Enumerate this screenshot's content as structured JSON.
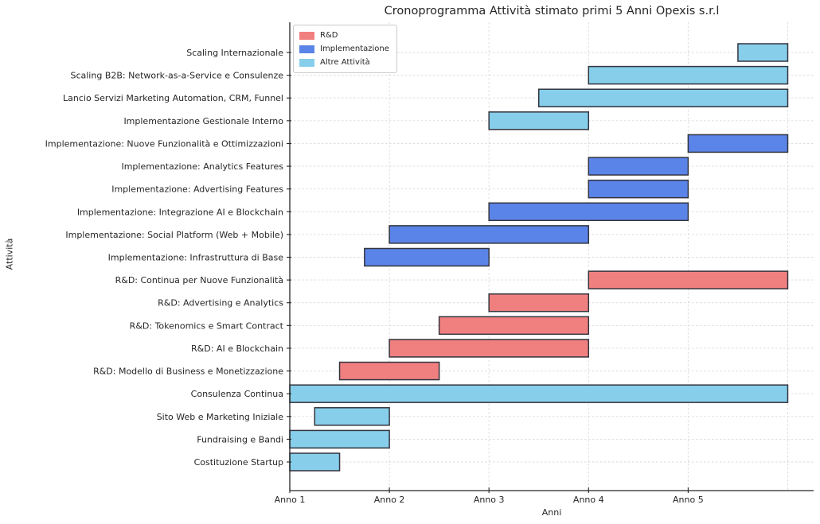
{
  "chart_data": {
    "type": "bar",
    "variant": "gantt-horizontal",
    "title": "Cronoprogramma Attività stimato primi 5 Anni Opexis s.r.l",
    "xlabel": "Anni",
    "ylabel": "Attività",
    "x_tick_labels": [
      "Anno 1",
      "Anno 2",
      "Anno 3",
      "Anno 4",
      "Anno 5"
    ],
    "x_tick_positions": [
      0,
      1,
      2,
      3,
      4
    ],
    "xlim": [
      0,
      5.26
    ],
    "grid": true,
    "grid_style": "dashed",
    "legend": {
      "position": "upper-left",
      "entries": [
        {
          "label": "R&D",
          "color": "#F08080"
        },
        {
          "label": "Implementazione",
          "color": "#5B84E8"
        },
        {
          "label": "Altre Attività",
          "color": "#87CEEB"
        }
      ]
    },
    "bar_edge_color": "#33343E",
    "grid_color": "#D9D9D9",
    "axis_color": "#262626",
    "tasks": [
      {
        "label": "Scaling Internazionale",
        "start": 4.5,
        "end": 5.0,
        "category": "Altre Attività"
      },
      {
        "label": "Scaling B2B: Network-as-a-Service e Consulenze",
        "start": 3.0,
        "end": 5.0,
        "category": "Altre Attività"
      },
      {
        "label": "Lancio Servizi Marketing Automation, CRM, Funnel",
        "start": 2.5,
        "end": 5.0,
        "category": "Altre Attività"
      },
      {
        "label": "Implementazione Gestionale Interno",
        "start": 2.0,
        "end": 3.0,
        "category": "Altre Attività"
      },
      {
        "label": "Implementazione: Nuove Funzionalità e Ottimizzazioni",
        "start": 4.0,
        "end": 5.0,
        "category": "Implementazione"
      },
      {
        "label": "Implementazione: Analytics Features",
        "start": 3.0,
        "end": 4.0,
        "category": "Implementazione"
      },
      {
        "label": "Implementazione: Advertising Features",
        "start": 3.0,
        "end": 4.0,
        "category": "Implementazione"
      },
      {
        "label": "Implementazione: Integrazione AI e Blockchain",
        "start": 2.0,
        "end": 4.0,
        "category": "Implementazione"
      },
      {
        "label": "Implementazione: Social Platform (Web + Mobile)",
        "start": 1.0,
        "end": 3.0,
        "category": "Implementazione"
      },
      {
        "label": "Implementazione: Infrastruttura di Base",
        "start": 0.75,
        "end": 2.0,
        "category": "Implementazione"
      },
      {
        "label": "R&D: Continua per Nuove Funzionalità",
        "start": 3.0,
        "end": 5.0,
        "category": "R&D"
      },
      {
        "label": "R&D: Advertising e Analytics",
        "start": 2.0,
        "end": 3.0,
        "category": "R&D"
      },
      {
        "label": "R&D: Tokenomics e Smart Contract",
        "start": 1.5,
        "end": 3.0,
        "category": "R&D"
      },
      {
        "label": "R&D: AI e Blockchain",
        "start": 1.0,
        "end": 3.0,
        "category": "R&D"
      },
      {
        "label": "R&D: Modello di Business e Monetizzazione",
        "start": 0.5,
        "end": 1.5,
        "category": "R&D"
      },
      {
        "label": "Consulenza Continua",
        "start": 0.0,
        "end": 5.0,
        "category": "Altre Attività"
      },
      {
        "label": "Sito Web e Marketing Iniziale",
        "start": 0.25,
        "end": 1.0,
        "category": "Altre Attività"
      },
      {
        "label": "Fundraising e Bandi",
        "start": 0.0,
        "end": 1.0,
        "category": "Altre Attività"
      },
      {
        "label": "Costituzione Startup",
        "start": 0.0,
        "end": 0.5,
        "category": "Altre Attività"
      }
    ]
  }
}
